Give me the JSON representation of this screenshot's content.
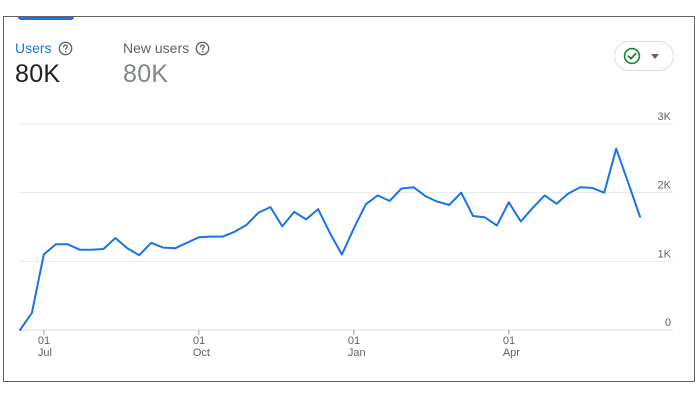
{
  "metrics": {
    "users": {
      "label": "Users",
      "value": "80K"
    },
    "new_users": {
      "label": "New users",
      "value": "80K"
    }
  },
  "compare_button": {
    "icon": "check-circle-icon",
    "accent": "#188038"
  },
  "colors": {
    "accent": "#1a73e8",
    "line": "#1a73e8",
    "grid": "#e8eaed"
  },
  "chart_data": {
    "type": "line",
    "ylim": [
      0,
      3000
    ],
    "y_ticks": [
      {
        "value": 3000,
        "label": "3K"
      },
      {
        "value": 2000,
        "label": "2K"
      },
      {
        "value": 1000,
        "label": "1K"
      },
      {
        "value": 0,
        "label": "0"
      }
    ],
    "x_ticks": [
      {
        "index": 2,
        "day": "01",
        "month": "Jul"
      },
      {
        "index": 15,
        "day": "01",
        "month": "Oct"
      },
      {
        "index": 28,
        "day": "01",
        "month": "Jan"
      },
      {
        "index": 41,
        "day": "01",
        "month": "Apr"
      }
    ],
    "grid": true,
    "series": [
      {
        "values": [
          0,
          250,
          1100,
          1250,
          1250,
          1170,
          1170,
          1180,
          1340,
          1190,
          1090,
          1270,
          1200,
          1190,
          1270,
          1350,
          1360,
          1360,
          1430,
          1530,
          1710,
          1790,
          1510,
          1720,
          1610,
          1760,
          1410,
          1100,
          1480,
          1830,
          1960,
          1880,
          2060,
          2080,
          1950,
          1870,
          1820,
          2000,
          1660,
          1640,
          1520,
          1860,
          1580,
          1780,
          1960,
          1840,
          1990,
          2080,
          2070,
          2000,
          2640,
          2150,
          1650
        ]
      }
    ]
  }
}
